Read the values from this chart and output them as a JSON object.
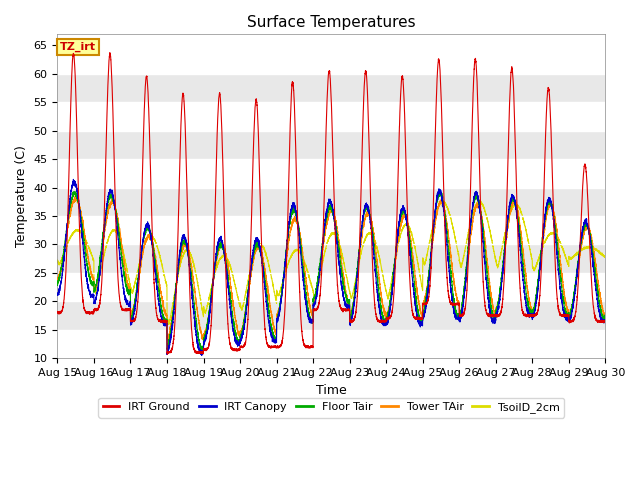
{
  "title": "Surface Temperatures",
  "xlabel": "Time",
  "ylabel": "Temperature (C)",
  "ylim": [
    10,
    67
  ],
  "yticks": [
    10,
    15,
    20,
    25,
    30,
    35,
    40,
    45,
    50,
    55,
    60,
    65
  ],
  "x_tick_labels": [
    "Aug 15",
    "Aug 16",
    "Aug 17",
    "Aug 18",
    "Aug 19",
    "Aug 20",
    "Aug 21",
    "Aug 22",
    "Aug 23",
    "Aug 24",
    "Aug 25",
    "Aug 26",
    "Aug 27",
    "Aug 28",
    "Aug 29",
    "Aug 30"
  ],
  "bg_bands": [
    {
      "ymin": 10,
      "ymax": 15,
      "color": "#ffffff"
    },
    {
      "ymin": 15,
      "ymax": 20,
      "color": "#e8e8e8"
    },
    {
      "ymin": 20,
      "ymax": 25,
      "color": "#ffffff"
    },
    {
      "ymin": 25,
      "ymax": 30,
      "color": "#e8e8e8"
    },
    {
      "ymin": 30,
      "ymax": 35,
      "color": "#ffffff"
    },
    {
      "ymin": 35,
      "ymax": 40,
      "color": "#e8e8e8"
    },
    {
      "ymin": 40,
      "ymax": 45,
      "color": "#ffffff"
    },
    {
      "ymin": 45,
      "ymax": 50,
      "color": "#e8e8e8"
    },
    {
      "ymin": 50,
      "ymax": 55,
      "color": "#ffffff"
    },
    {
      "ymin": 55,
      "ymax": 60,
      "color": "#e8e8e8"
    },
    {
      "ymin": 60,
      "ymax": 67,
      "color": "#ffffff"
    }
  ],
  "legend_entries": [
    {
      "label": "IRT Ground",
      "color": "#dd0000"
    },
    {
      "label": "IRT Canopy",
      "color": "#0000cc"
    },
    {
      "label": "Floor Tair",
      "color": "#00aa00"
    },
    {
      "label": "Tower TAir",
      "color": "#ff8800"
    },
    {
      "label": "TsoilD_2cm",
      "color": "#dddd00"
    }
  ],
  "annotation_text": "TZ_irt",
  "annotation_color": "#cc0000",
  "annotation_bg": "#ffff99",
  "annotation_border": "#cc8800",
  "n_days": 15,
  "irt_ground_peaks": [
    63.5,
    63.5,
    59.5,
    56.5,
    56.5,
    55.5,
    58.5,
    60.5,
    60.5,
    59.5,
    62.5,
    62.5,
    61.0,
    57.5,
    44.0
  ],
  "irt_ground_troughs": [
    18.0,
    18.5,
    16.5,
    11.0,
    11.5,
    12.0,
    12.0,
    18.5,
    16.5,
    17.0,
    19.5,
    17.5,
    17.5,
    17.5,
    16.5
  ],
  "canopy_peaks": [
    41.0,
    39.5,
    33.5,
    31.5,
    31.0,
    31.0,
    37.0,
    37.5,
    37.0,
    36.5,
    39.5,
    39.0,
    38.5,
    38.0,
    34.0
  ],
  "canopy_troughs": [
    21.0,
    19.5,
    16.0,
    11.0,
    12.5,
    13.0,
    16.5,
    19.0,
    16.0,
    16.0,
    17.0,
    16.5,
    17.5,
    17.0,
    16.5
  ],
  "floor_peaks": [
    39.0,
    38.5,
    33.0,
    30.5,
    30.0,
    30.0,
    36.0,
    36.5,
    36.5,
    36.0,
    39.0,
    38.5,
    38.0,
    37.5,
    33.5
  ],
  "floor_troughs": [
    23.0,
    21.5,
    16.5,
    11.5,
    13.0,
    13.5,
    16.5,
    20.0,
    16.5,
    16.5,
    17.5,
    17.0,
    18.0,
    17.5,
    17.0
  ],
  "tower_peaks": [
    38.0,
    37.5,
    31.5,
    30.0,
    30.0,
    29.5,
    34.5,
    36.0,
    35.5,
    35.0,
    37.5,
    37.0,
    37.5,
    37.0,
    33.0
  ],
  "tower_troughs": [
    24.0,
    22.0,
    17.5,
    13.5,
    14.0,
    14.5,
    17.5,
    19.5,
    17.5,
    17.5,
    19.5,
    17.5,
    18.5,
    18.0,
    17.5
  ],
  "soil_peaks": [
    32.5,
    32.5,
    31.5,
    29.0,
    28.0,
    30.0,
    29.0,
    32.0,
    32.0,
    33.5,
    37.5,
    37.5,
    37.0,
    32.0,
    29.5
  ],
  "soil_troughs": [
    26.5,
    21.5,
    21.5,
    16.0,
    18.0,
    18.5,
    21.0,
    20.5,
    20.5,
    20.5,
    26.5,
    26.0,
    26.0,
    25.5,
    27.5
  ]
}
